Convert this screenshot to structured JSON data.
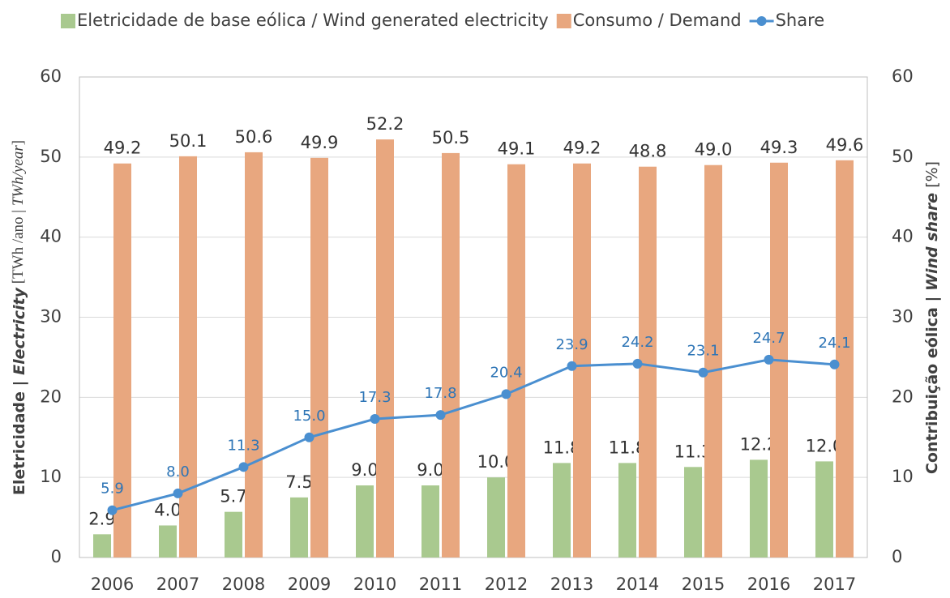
{
  "chart_data": {
    "type": "bar_line",
    "categories": [
      "2006",
      "2007",
      "2008",
      "2009",
      "2010",
      "2011",
      "2012",
      "2013",
      "2014",
      "2015",
      "2016",
      "2017"
    ],
    "series": [
      {
        "name": "Eletricidade de base eólica / Wind generated electricity",
        "color": "#a9c98f",
        "type": "bar",
        "values": [
          2.9,
          4.0,
          5.7,
          7.5,
          9.0,
          9.0,
          10.0,
          11.8,
          11.8,
          11.3,
          12.2,
          12.0
        ],
        "value_labels": [
          "2.9",
          "4.0",
          "5.7",
          "7.5",
          "9.0",
          "9.0",
          "10.0",
          "11.8",
          "11.8",
          "11.3",
          "12.2",
          "12.0"
        ]
      },
      {
        "name": "Consumo / Demand",
        "color": "#e8a77f",
        "type": "bar",
        "values": [
          49.2,
          50.1,
          50.6,
          49.9,
          52.2,
          50.5,
          49.1,
          49.2,
          48.8,
          49.0,
          49.3,
          49.6
        ],
        "value_labels": [
          "49.2",
          "50.1",
          "50.6",
          "49.9",
          "52.2",
          "50.5",
          "49.1",
          "49.2",
          "48.8",
          "49.0",
          "49.3",
          "49.6"
        ]
      },
      {
        "name": "Share",
        "color": "#4a8fd0",
        "type": "line",
        "axis": "y2",
        "values": [
          5.9,
          8.0,
          11.3,
          15.0,
          17.3,
          17.8,
          20.4,
          23.9,
          24.2,
          23.1,
          24.7,
          24.1
        ],
        "value_labels": [
          "5.9",
          "8.0",
          "11.3",
          "15.0",
          "17.3",
          "17.8",
          "20.4",
          "23.9",
          "24.2",
          "23.1",
          "24.7",
          "24.1"
        ]
      }
    ],
    "ylabel": [
      "Eletricidade | ",
      "Electricity",
      " [TWh /ano | ",
      "TWh/year",
      "]"
    ],
    "y2label": [
      "Contribuição eólica | ",
      "Wind share",
      " [%]"
    ],
    "ylim": [
      0,
      60
    ],
    "yticks": [
      0,
      10,
      20,
      30,
      40,
      50,
      60
    ],
    "y2lim": [
      0,
      60
    ],
    "y2ticks": [
      0,
      10,
      20,
      30,
      40,
      50,
      60
    ],
    "grid": true,
    "legend": "top"
  }
}
